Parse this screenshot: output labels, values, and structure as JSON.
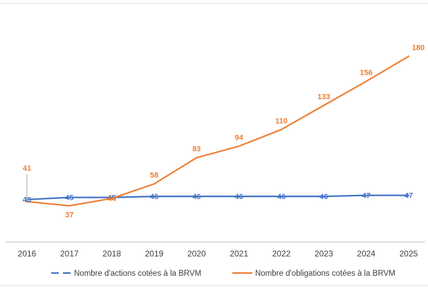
{
  "chart_data": {
    "type": "line",
    "x": [
      "2016",
      "2017",
      "2018",
      "2019",
      "2020",
      "2021",
      "2022",
      "2023",
      "2024",
      "2025"
    ],
    "series": [
      {
        "name": "Nombre d'actions cotées à la BRVM",
        "values": [
          43,
          45,
          45,
          46,
          46,
          46,
          46,
          46,
          47,
          47
        ],
        "color": "#4472C4",
        "dash": true
      },
      {
        "name": "Nombre d'obligations cotées à la BRVM",
        "values": [
          41,
          37,
          44,
          58,
          83,
          94,
          110,
          133,
          156,
          180
        ],
        "color": "#ED7D31",
        "dash": false
      }
    ],
    "legend_position": "bottom",
    "grid": false,
    "y_axis_visible": false
  }
}
